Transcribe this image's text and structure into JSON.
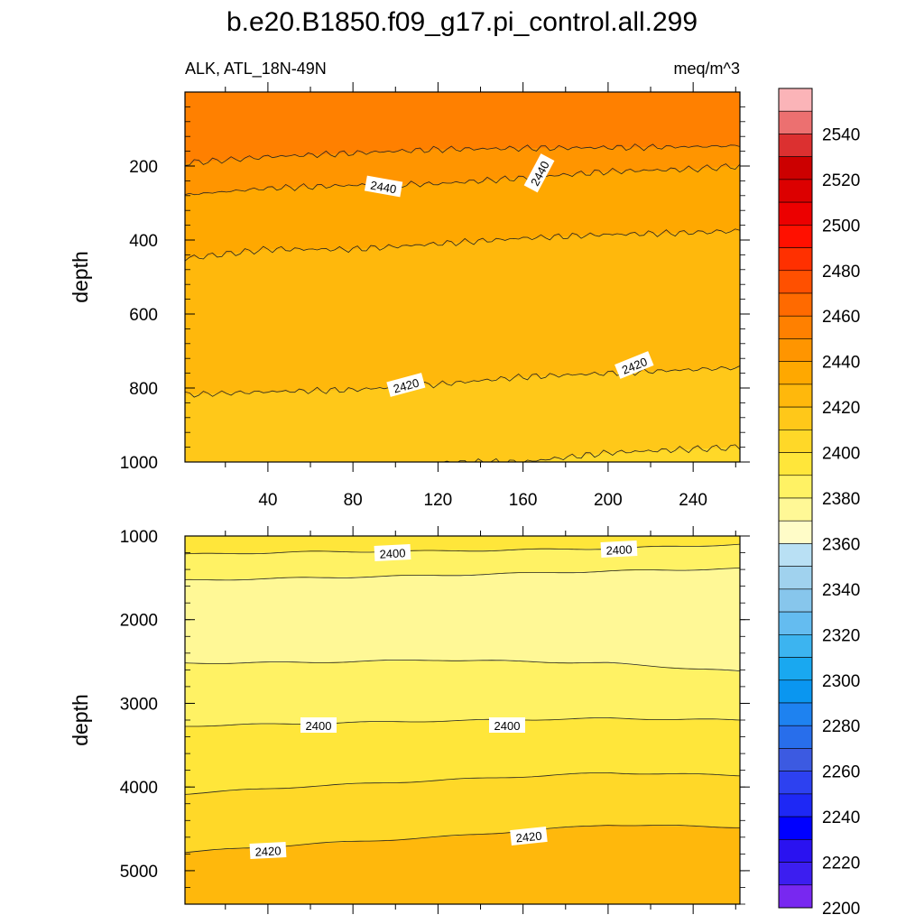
{
  "title": "b.e20.B1850.f09_g17.pi_control.all.299",
  "subtitle_left": "ALK, ATL_18N-49N",
  "subtitle_right": "meq/m^3",
  "colorbar": {
    "labels": [
      "2540",
      "2520",
      "2500",
      "2480",
      "2460",
      "2440",
      "2420",
      "2400",
      "2380",
      "2360",
      "2340",
      "2320",
      "2300",
      "2280",
      "2260",
      "2240",
      "2220",
      "2200"
    ],
    "colors_top_to_bottom": [
      "#fbb4b8",
      "#ec7070",
      "#dc3030",
      "#cc0000",
      "#dc0000",
      "#ec0000",
      "#ff1000",
      "#ff3000",
      "#ff5000",
      "#ff6a00",
      "#ff8000",
      "#ff9500",
      "#ffa800",
      "#ffb80c",
      "#ffc819",
      "#ffd828",
      "#ffe63a",
      "#fff264",
      "#fff896",
      "#fffcc8",
      "#b9e0f4",
      "#a0d2ee",
      "#87c6ec",
      "#64bcf0",
      "#3cb4f0",
      "#19a8f0",
      "#0a96f0",
      "#1e82f0",
      "#286eeb",
      "#3c5ae1",
      "#2d41f0",
      "#1e28f5",
      "#0000ff",
      "#2a12f0",
      "#3c1ef0",
      "#7828f0"
    ]
  },
  "chart_data": [
    {
      "type": "heatmap",
      "panel": "upper",
      "xlabel": "",
      "ylabel": "depth",
      "x_ticks": [
        "40",
        "80",
        "120",
        "160",
        "200",
        "240"
      ],
      "y_ticks": [
        "200",
        "400",
        "600",
        "800",
        "1000"
      ],
      "xlim": [
        1,
        262
      ],
      "ylim": [
        1000,
        0
      ],
      "contour_interval": 10,
      "bands_top_to_bottom": [
        {
          "range": "2450-2460",
          "color": "#ff8000"
        },
        {
          "range": "2440-2450",
          "color": "#ff9500"
        },
        {
          "range": "2430-2440",
          "color": "#ffa800"
        },
        {
          "range": "2420-2430",
          "color": "#ffb80c"
        },
        {
          "range": "2410-2420",
          "color": "#ffc819"
        },
        {
          "range": "2400-2410",
          "color": "#ffd828"
        }
      ],
      "contours": [
        {
          "level": 2450,
          "points": [
            [
              1,
              192
            ],
            [
              40,
              175
            ],
            [
              80,
              165
            ],
            [
              120,
              155
            ],
            [
              160,
              152
            ],
            [
              200,
              150
            ],
            [
              240,
              148
            ],
            [
              262,
              145
            ]
          ]
        },
        {
          "level": 2440,
          "points": [
            [
              1,
              278
            ],
            [
              40,
              260
            ],
            [
              80,
              252
            ],
            [
              120,
              248
            ],
            [
              160,
              232
            ],
            [
              200,
              215
            ],
            [
              240,
              208
            ],
            [
              262,
              200
            ]
          ]
        },
        {
          "level": 2430,
          "points": [
            [
              1,
              450
            ],
            [
              40,
              425
            ],
            [
              80,
              425
            ],
            [
              120,
              410
            ],
            [
              160,
              395
            ],
            [
              200,
              385
            ],
            [
              240,
              380
            ],
            [
              262,
              375
            ]
          ]
        },
        {
          "level": 2420,
          "points": [
            [
              1,
              818
            ],
            [
              40,
              810
            ],
            [
              80,
              805
            ],
            [
              120,
              790
            ],
            [
              160,
              770
            ],
            [
              200,
              760
            ],
            [
              240,
              750
            ],
            [
              262,
              745
            ]
          ]
        },
        {
          "level": 2410,
          "points": [
            [
              120,
              1000
            ],
            [
              160,
              1000
            ],
            [
              200,
              975
            ],
            [
              240,
              965
            ],
            [
              262,
              960
            ]
          ]
        }
      ],
      "contour_labels": [
        "2440",
        "2440",
        "2420",
        "2420"
      ]
    },
    {
      "type": "heatmap",
      "panel": "lower",
      "xlabel": "",
      "ylabel": "depth",
      "y_ticks": [
        "1000",
        "2000",
        "3000",
        "4000",
        "5000"
      ],
      "xlim": [
        1,
        262
      ],
      "ylim": [
        5400,
        1000
      ],
      "contour_interval": 10,
      "bands_top_to_bottom": [
        {
          "range": "2400-2410",
          "color": "#ffe63a"
        },
        {
          "range": "2390-2400",
          "color": "#fff264"
        },
        {
          "range": "2380-2390",
          "color": "#fff896"
        },
        {
          "range": "2390-2400",
          "color": "#fff264"
        },
        {
          "range": "2400-2410",
          "color": "#ffe63a"
        },
        {
          "range": "2410-2420",
          "color": "#ffd828"
        },
        {
          "range": "2420-2430",
          "color": "#ffc819"
        },
        {
          "range": "2430-2440",
          "color": "#ffb80c"
        }
      ],
      "contours": [
        {
          "level": 2400,
          "points": [
            [
              1,
              1220
            ],
            [
              60,
              1190
            ],
            [
              120,
              1180
            ],
            [
              200,
              1150
            ],
            [
              262,
              1100
            ]
          ]
        },
        {
          "level": 2390,
          "points": [
            [
              1,
              1530
            ],
            [
              60,
              1500
            ],
            [
              120,
              1470
            ],
            [
              200,
              1420
            ],
            [
              262,
              1390
            ]
          ]
        },
        {
          "level": 2390,
          "points": [
            [
              1,
              2520
            ],
            [
              60,
              2510
            ],
            [
              120,
              2480
            ],
            [
              200,
              2520
            ],
            [
              262,
              2620
            ]
          ]
        },
        {
          "level": 2400,
          "points": [
            [
              1,
              3270
            ],
            [
              60,
              3240
            ],
            [
              120,
              3210
            ],
            [
              200,
              3180
            ],
            [
              262,
              3200
            ]
          ]
        },
        {
          "level": 2410,
          "points": [
            [
              1,
              4080
            ],
            [
              60,
              3990
            ],
            [
              120,
              3920
            ],
            [
              200,
              3830
            ],
            [
              262,
              3860
            ]
          ]
        },
        {
          "level": 2420,
          "points": [
            [
              1,
              4780
            ],
            [
              60,
              4680
            ],
            [
              120,
              4600
            ],
            [
              200,
              4450
            ],
            [
              262,
              4480
            ]
          ]
        }
      ],
      "contour_labels": [
        "2400",
        "2400",
        "2400",
        "2400",
        "2420",
        "2420"
      ]
    }
  ]
}
